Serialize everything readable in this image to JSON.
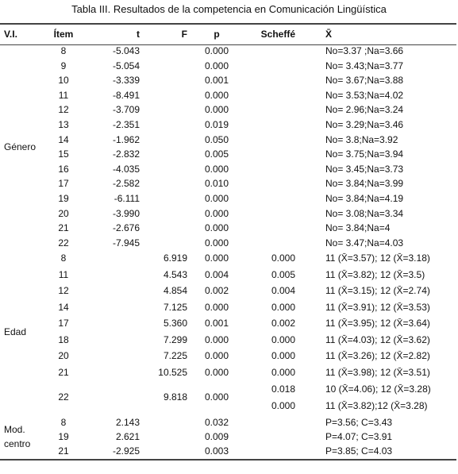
{
  "title": "Tabla III. Resultados de la competencia en Comunicación Lingüística",
  "table": {
    "header": [
      "V.I.",
      "Ítem",
      "t",
      "F",
      "p",
      "Scheffé",
      "X̄"
    ],
    "groups": [
      {
        "label": [
          "Género"
        ],
        "rows": [
          [
            "8",
            "-5.043",
            null,
            "0.000",
            null,
            "No=3.37 ;Na=3.66"
          ],
          [
            "9",
            "-5.054",
            null,
            "0.000",
            null,
            "No= 3.43;Na=3.77"
          ],
          [
            "10",
            "-3.339",
            null,
            "0.001",
            null,
            "No= 3.67;Na=3.88"
          ],
          [
            "11",
            "-8.491",
            null,
            "0.000",
            null,
            "No= 3.53;Na=4.02"
          ],
          [
            "12",
            "-3.709",
            null,
            "0.000",
            null,
            "No= 2.96;Na=3.24"
          ],
          [
            "13",
            "-2.351",
            null,
            "0.019",
            null,
            "No= 3.29;Na=3.46"
          ],
          [
            "14",
            "-1.962",
            null,
            "0.050",
            null,
            "No= 3.8;Na=3.92"
          ],
          [
            "15",
            "-2.832",
            null,
            "0.005",
            null,
            "No= 3.75;Na=3.94"
          ],
          [
            "16",
            "-4.035",
            null,
            "0.000",
            null,
            "No= 3.45;Na=3.73"
          ],
          [
            "17",
            "-2.582",
            null,
            "0.010",
            null,
            "No= 3.84;Na=3.99"
          ],
          [
            "19",
            "-6.111",
            null,
            "0.000",
            null,
            "No= 3.84;Na=4.19"
          ],
          [
            "20",
            "-3.990",
            null,
            "0.000",
            null,
            "No= 3.08;Na=3.34"
          ],
          [
            "21",
            "-2.676",
            null,
            "0.000",
            null,
            "No= 3.84;Na=4"
          ],
          [
            "22",
            "-7.945",
            null,
            "0.000",
            null,
            "No= 3.47;Na=4.03"
          ]
        ]
      },
      {
        "label": [
          "Edad"
        ],
        "rows": [
          [
            "8",
            null,
            "6.919",
            "0.000",
            "0.000",
            "11 (X̄=3.57); 12 (X̄=3.18)"
          ],
          [
            "11",
            null,
            "4.543",
            "0.004",
            "0.005",
            "11 (X̄=3.82); 12 (X̄=3.5)"
          ],
          [
            "12",
            null,
            "4.854",
            "0.002",
            "0.004",
            "11 (X̄=3.15); 12 (X̄=2.74)"
          ],
          [
            "14",
            null,
            "7.125",
            "0.000",
            "0.000",
            "11 (X̄=3.91); 12 (X̄=3.53)"
          ],
          [
            "17",
            null,
            "5.360",
            "0.001",
            "0.002",
            "11 (X̄=3.95); 12 (X̄=3.64)"
          ],
          [
            "18",
            null,
            "7.299",
            "0.000",
            "0.000",
            "11 (X̄=4.03); 12 (X̄=3.62)"
          ],
          [
            "20",
            null,
            "7.225",
            "0.000",
            "0.000",
            "11 (X̄=3.26); 12 (X̄=2.82)"
          ],
          [
            "21",
            null,
            "10.525",
            "0.000",
            "0.000",
            "11 (X̄=3.98); 12 (X̄=3.51)"
          ],
          [
            "22",
            null,
            "9.818",
            "0.000",
            [
              "0.018",
              "0.000"
            ],
            [
              "10 (X̄=4.06); 12 (X̄=3.28)",
              "11 (X̄=3.82);12 (X̄=3.28)"
            ]
          ]
        ]
      },
      {
        "label": [
          "Mod.",
          "centro"
        ],
        "rows": [
          [
            "8",
            "2.143",
            null,
            "0.032",
            null,
            "P=3.56; C=3.43"
          ],
          [
            "19",
            "2.621",
            null,
            "0.009",
            null,
            "P=4.07; C=3.91"
          ],
          [
            "21",
            "-2.925",
            null,
            "0.003",
            null,
            "P=3.85; C=4.03"
          ]
        ]
      }
    ]
  }
}
